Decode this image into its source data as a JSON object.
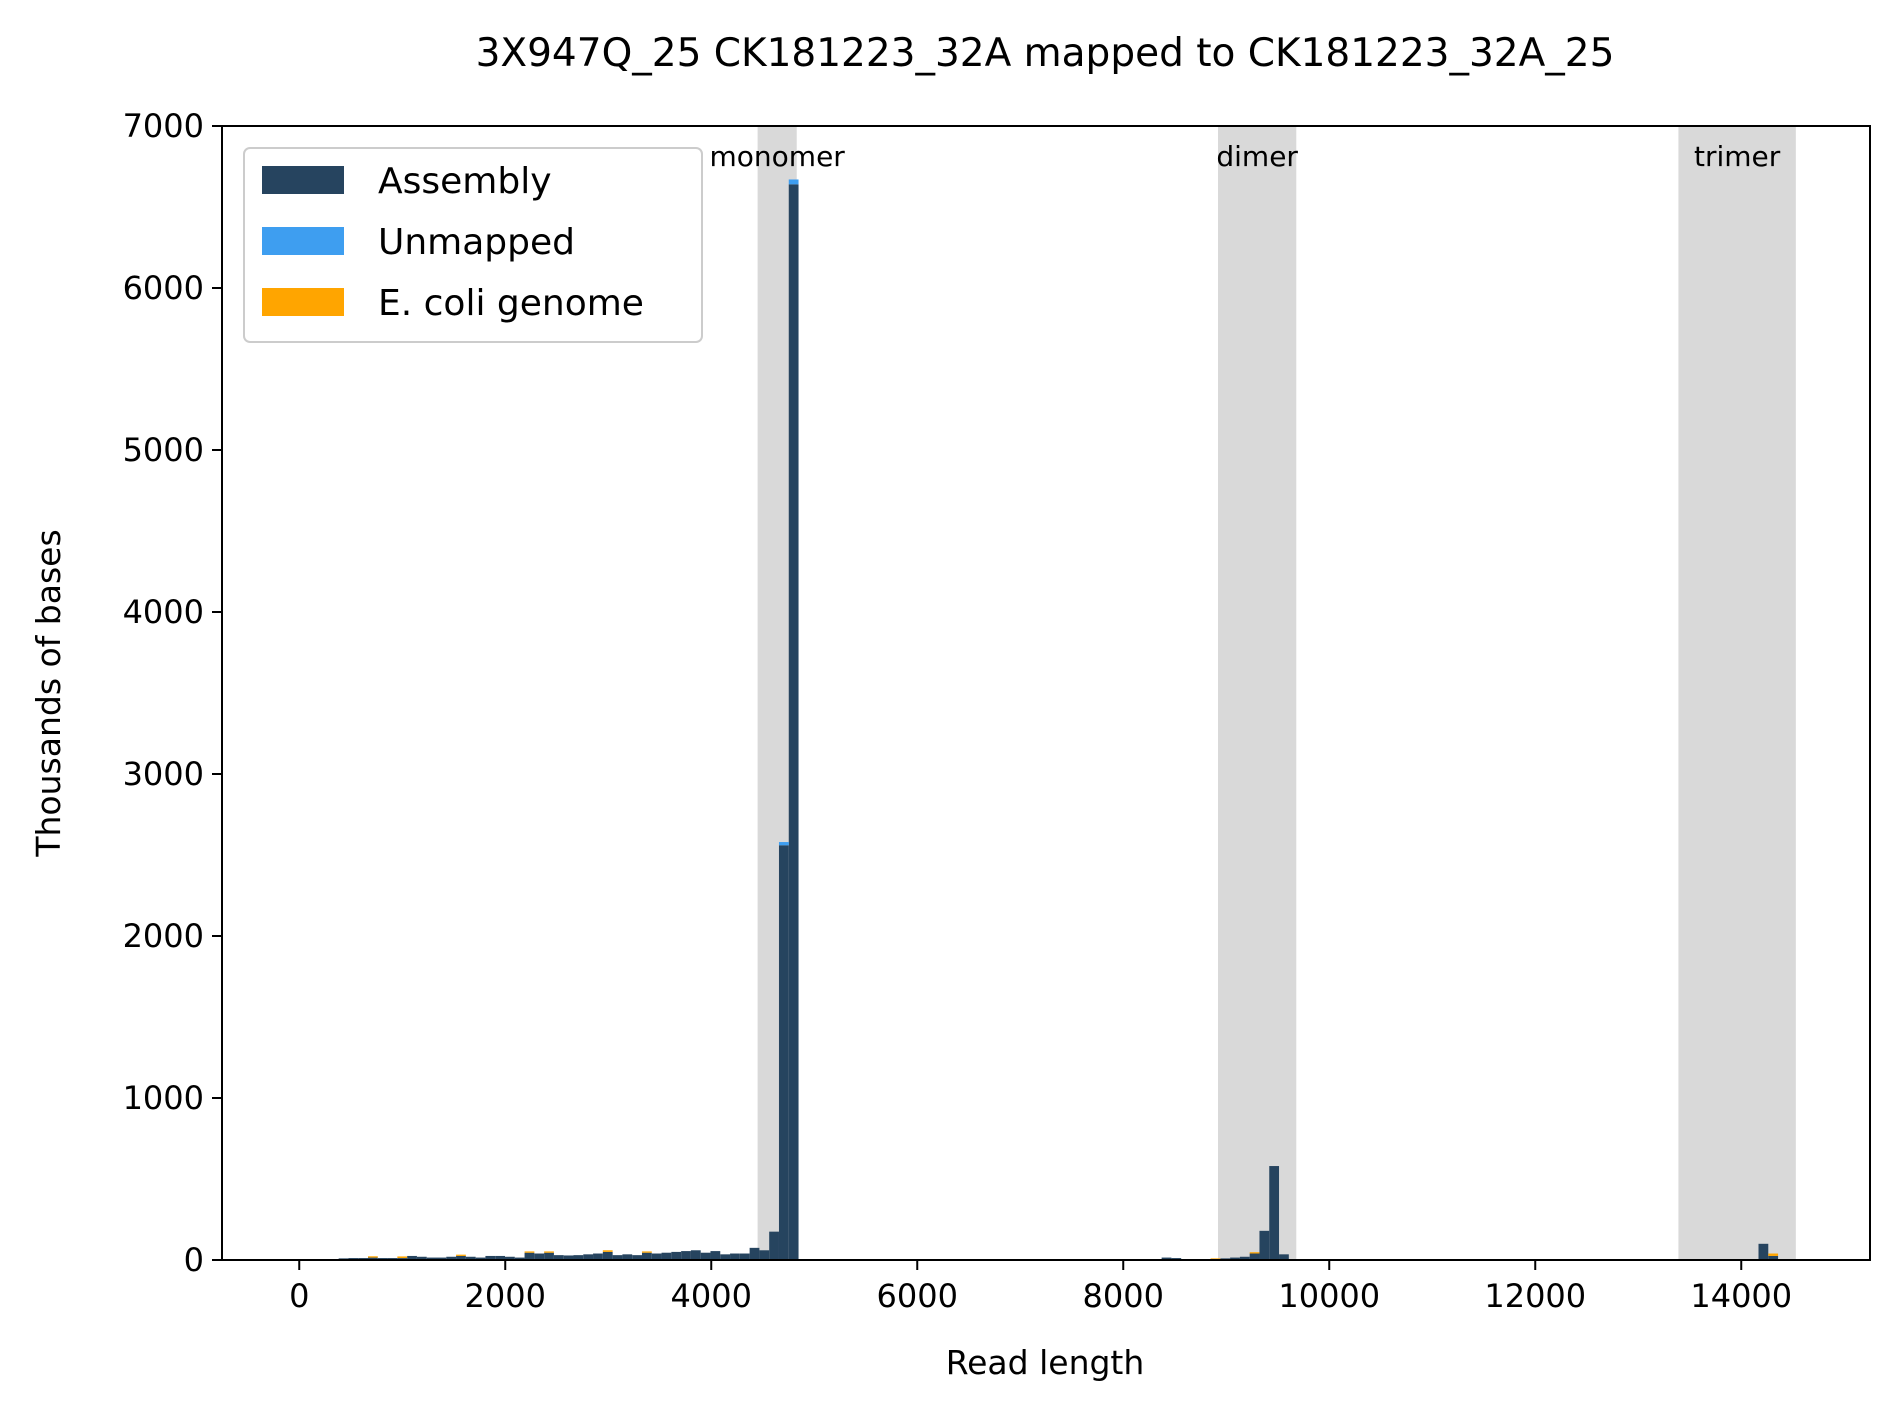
{
  "chart_data": {
    "type": "bar",
    "subtype": "stacked-histogram",
    "title": "3X947Q_25 CK181223_32A mapped to CK181223_32A_25",
    "xlabel": "Read length",
    "ylabel": "Thousands of bases",
    "xlim": [
      -750,
      15250
    ],
    "ylim": [
      0,
      7000
    ],
    "xticks": [
      0,
      2000,
      4000,
      6000,
      8000,
      10000,
      12000,
      14000
    ],
    "yticks": [
      0,
      1000,
      2000,
      3000,
      4000,
      5000,
      6000,
      7000
    ],
    "bin_width": 95,
    "grid": false,
    "legend": {
      "placement": "top-left",
      "entries": [
        "Assembly",
        "Unmapped",
        "E. coli genome"
      ]
    },
    "colors": {
      "assembly": "#26445f",
      "unmapped": "#3e9ef0",
      "ecoli": "#ffa500",
      "band": "#d9d9d9"
    },
    "bands": [
      {
        "label": "monomer",
        "x0": 4450,
        "x1": 4830
      },
      {
        "label": "dimer",
        "x0": 8920,
        "x1": 9680
      },
      {
        "label": "trimer",
        "x0": 13390,
        "x1": 14530
      }
    ],
    "series": [
      {
        "name": "Assembly",
        "x": [
          430,
          525,
          620,
          715,
          810,
          905,
          1000,
          1095,
          1190,
          1285,
          1380,
          1475,
          1570,
          1665,
          1760,
          1855,
          1950,
          2045,
          2140,
          2235,
          2330,
          2425,
          2520,
          2615,
          2710,
          2805,
          2900,
          2995,
          3090,
          3185,
          3280,
          3375,
          3470,
          3565,
          3660,
          3755,
          3850,
          3945,
          4040,
          4135,
          4230,
          4325,
          4420,
          4515,
          4610,
          4705,
          4800,
          6070,
          6165,
          7850,
          8420,
          8515,
          8990,
          9085,
          9180,
          9275,
          9370,
          9465,
          9560,
          13740,
          14215,
          14310
        ],
        "values": [
          10,
          12,
          12,
          15,
          12,
          12,
          12,
          25,
          20,
          15,
          15,
          20,
          25,
          20,
          15,
          25,
          25,
          20,
          15,
          45,
          40,
          45,
          30,
          28,
          30,
          35,
          40,
          50,
          30,
          35,
          30,
          45,
          40,
          45,
          50,
          55,
          60,
          45,
          55,
          35,
          40,
          40,
          75,
          60,
          175,
          2560,
          6640,
          5,
          5,
          5,
          15,
          12,
          10,
          15,
          20,
          40,
          180,
          580,
          35,
          5,
          100,
          25
        ]
      },
      {
        "name": "Unmapped",
        "x": [
          4705,
          4800
        ],
        "values": [
          20,
          30
        ]
      },
      {
        "name": "E. coli genome",
        "x": [
          715,
          1000,
          1570,
          2235,
          2425,
          2995,
          3375,
          5465,
          8895,
          9275,
          10890,
          14310
        ],
        "values": [
          8,
          10,
          8,
          8,
          8,
          10,
          8,
          6,
          10,
          8,
          6,
          15
        ]
      }
    ]
  }
}
